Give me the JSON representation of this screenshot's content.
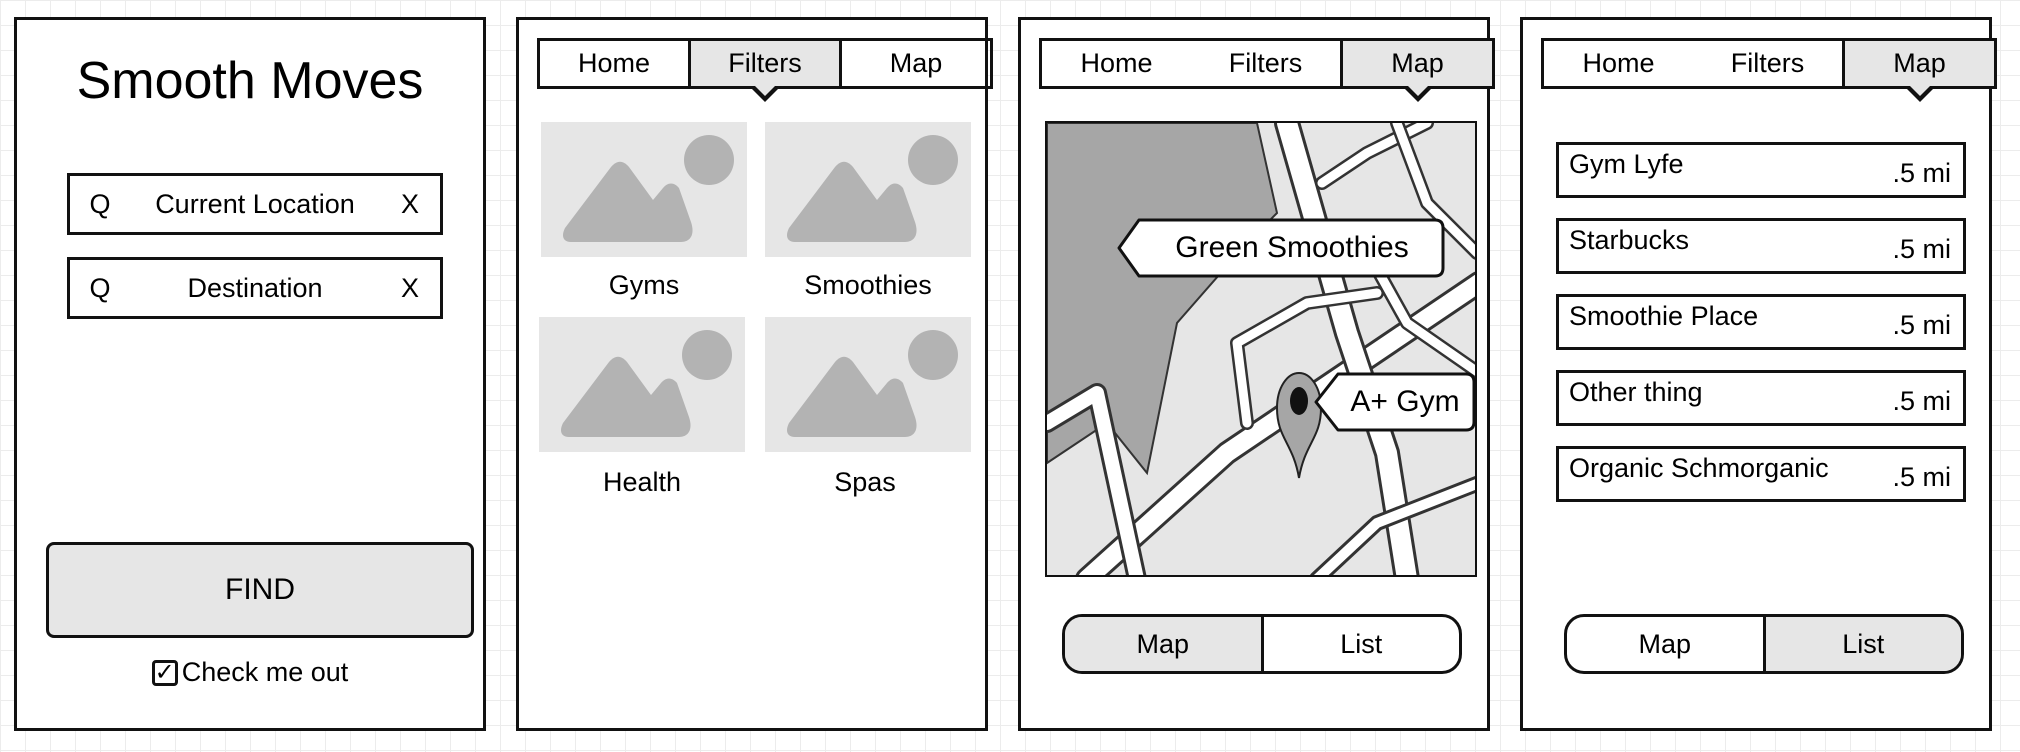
{
  "screen1": {
    "title": "Smooth Moves",
    "search_current": {
      "icon": "Q",
      "text": "Current Location",
      "clear": "X"
    },
    "search_destination": {
      "icon": "Q",
      "text": "Destination",
      "clear": "X"
    },
    "find_label": "FIND",
    "checkbox": {
      "label": "Check me out",
      "checked": true,
      "mark": "✓"
    }
  },
  "screen2": {
    "tabs": [
      "Home",
      "Filters",
      "Map"
    ],
    "active_tab": "Filters",
    "tiles": [
      "Gyms",
      "Smoothies",
      "Health",
      "Spas"
    ]
  },
  "screen3": {
    "tabs": [
      "Home",
      "Filters",
      "Map"
    ],
    "active_tab": "Map",
    "callout_1": "Green Smoothies",
    "callout_2": "A+ Gym",
    "toggle": [
      "Map",
      "List"
    ],
    "toggle_selected": "Map"
  },
  "screen4": {
    "tabs": [
      "Home",
      "Filters",
      "Map"
    ],
    "active_tab": "Map",
    "results": [
      {
        "name": "Gym Lyfe",
        "distance": ".5 mi"
      },
      {
        "name": "Starbucks",
        "distance": ".5 mi"
      },
      {
        "name": "Smoothie Place",
        "distance": ".5 mi"
      },
      {
        "name": "Other thing",
        "distance": ".5 mi"
      },
      {
        "name": "Organic Schmorganic",
        "distance": ".5 mi"
      }
    ],
    "toggle": [
      "Map",
      "List"
    ],
    "toggle_selected": "List"
  },
  "colors": {
    "outline": "#111111",
    "selected_fill": "#e6e6e6",
    "placeholder_fill": "#e6e6e6",
    "placeholder_shape": "#b3b3b3",
    "map_block": "#a6a6a6"
  },
  "icons": {
    "search": "search-icon",
    "clear": "close-icon",
    "image_placeholder": "image-placeholder-icon",
    "map_pin": "map-pin-icon",
    "checkbox": "checkbox-icon"
  }
}
